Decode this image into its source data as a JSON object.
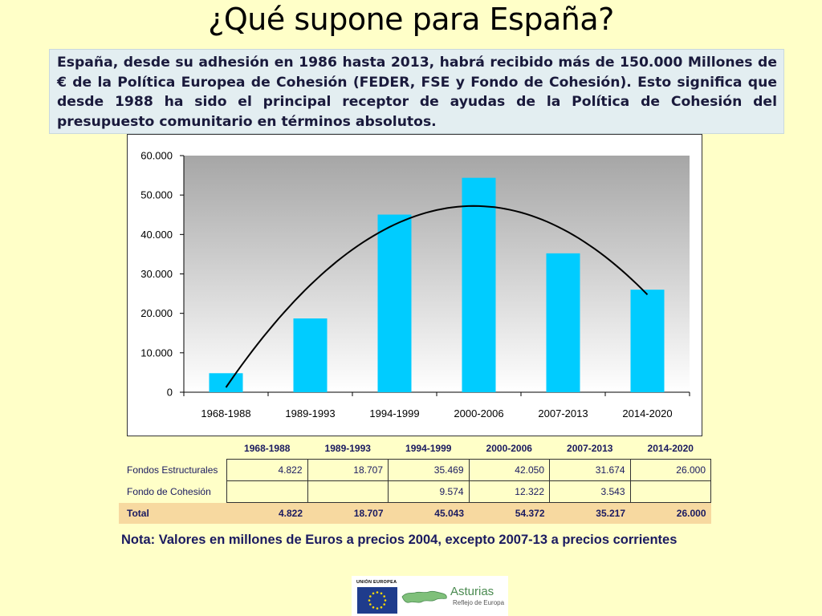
{
  "title": "¿Qué supone para España?",
  "intro": "España, desde su adhesión en 1986 hasta 2013, habrá recibido más de 150.000 Millones de € de la Política Europea de Cohesión (FEDER, FSE y Fondo de Cohesión). Esto significa que desde 1988 ha sido el principal receptor de ayudas de la Política de Cohesión del presupuesto comunitario en términos absolutos.",
  "chart_data": {
    "type": "bar",
    "categories": [
      "1968-1988",
      "1989-1993",
      "1994-1999",
      "2000-2006",
      "2007-2013",
      "2014-2020"
    ],
    "values": [
      4822,
      18707,
      45043,
      54372,
      35217,
      26000
    ],
    "ylim": [
      0,
      60000
    ],
    "yticks": [
      0,
      10000,
      20000,
      30000,
      40000,
      50000,
      60000
    ],
    "ytick_labels": [
      "0",
      "10.000",
      "20.000",
      "30.000",
      "40.000",
      "50.000",
      "60.000"
    ],
    "trend_curve": true,
    "bar_color": "#00ccff",
    "grid": false,
    "title": "",
    "xlabel": "",
    "ylabel": ""
  },
  "table": {
    "headers": [
      "1968-1988",
      "1989-1993",
      "1994-1999",
      "2000-2006",
      "2007-2013",
      "2014-2020"
    ],
    "rows": [
      {
        "label": "Fondos Estructurales",
        "values": [
          "4.822",
          "18.707",
          "35.469",
          "42.050",
          "31.674",
          "26.000"
        ]
      },
      {
        "label": "Fondo de Cohesión",
        "values": [
          "",
          "",
          "9.574",
          "12.322",
          "3.543",
          ""
        ]
      }
    ],
    "total": {
      "label": "Total",
      "values": [
        "4.822",
        "18.707",
        "45.043",
        "54.372",
        "35.217",
        "26.000"
      ]
    }
  },
  "note": "Nota: Valores en millones de Euros a precios 2004, excepto 2007-13 a precios corrientes",
  "logos": {
    "eu_label": "UNIÓN EUROPEA",
    "region_name": "Asturias",
    "region_tagline": "Reflejo de Europa"
  },
  "colors": {
    "background": "#ffffc8",
    "bar": "#00ccff",
    "total_row": "#f7d9a0",
    "intro_bg": "#e3eef1"
  }
}
